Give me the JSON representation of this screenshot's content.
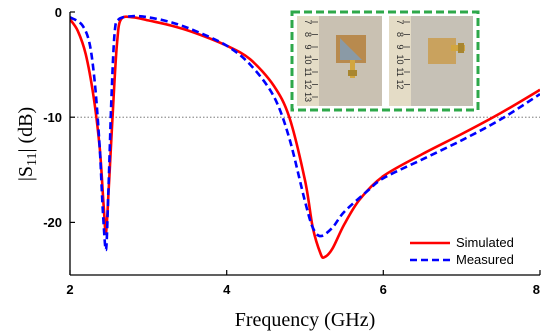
{
  "chart_data": {
    "type": "line",
    "title": "",
    "xlabel": "Frequency (GHz)",
    "ylabel": "|S11| (dB)",
    "ylabel_main": "|S",
    "ylabel_sub": "11",
    "ylabel_end": "| (dB)",
    "xlim": [
      2,
      8
    ],
    "ylim": [
      -25,
      0
    ],
    "x_ticks": [
      2,
      4,
      6,
      8
    ],
    "y_ticks": [
      0,
      -10,
      -20
    ],
    "x_tick_labels": [
      "2",
      "4",
      "6",
      "8"
    ],
    "y_tick_labels": [
      "0",
      "-10",
      "-20"
    ],
    "reference_line": {
      "y": -10,
      "style": "dotted"
    },
    "legend": {
      "placement": "bottom-right"
    },
    "series": [
      {
        "name": "Simulated",
        "color": "#ff0000",
        "style": "solid",
        "points": [
          [
            2.0,
            -0.7
          ],
          [
            2.1,
            -1.8
          ],
          [
            2.2,
            -4.0
          ],
          [
            2.3,
            -8.0
          ],
          [
            2.38,
            -13.0
          ],
          [
            2.43,
            -18.5
          ],
          [
            2.46,
            -21.0
          ],
          [
            2.5,
            -16.0
          ],
          [
            2.55,
            -9.0
          ],
          [
            2.6,
            -3.0
          ],
          [
            2.65,
            -0.7
          ],
          [
            2.8,
            -0.5
          ],
          [
            3.0,
            -0.8
          ],
          [
            3.3,
            -1.3
          ],
          [
            3.6,
            -2.0
          ],
          [
            4.0,
            -3.2
          ],
          [
            4.3,
            -4.5
          ],
          [
            4.6,
            -7.0
          ],
          [
            4.8,
            -10.0
          ],
          [
            5.0,
            -16.0
          ],
          [
            5.1,
            -20.5
          ],
          [
            5.2,
            -23.0
          ],
          [
            5.25,
            -23.3
          ],
          [
            5.35,
            -22.5
          ],
          [
            5.5,
            -20.2
          ],
          [
            5.7,
            -17.8
          ],
          [
            6.0,
            -15.6
          ],
          [
            6.5,
            -13.5
          ],
          [
            7.0,
            -11.6
          ],
          [
            7.5,
            -9.6
          ],
          [
            8.0,
            -7.4
          ]
        ]
      },
      {
        "name": "Measured",
        "color": "#0000ff",
        "style": "dashed",
        "points": [
          [
            2.0,
            -0.5
          ],
          [
            2.15,
            -1.2
          ],
          [
            2.25,
            -3.0
          ],
          [
            2.32,
            -7.0
          ],
          [
            2.38,
            -13.0
          ],
          [
            2.42,
            -19.0
          ],
          [
            2.46,
            -22.6
          ],
          [
            2.49,
            -17.0
          ],
          [
            2.53,
            -8.0
          ],
          [
            2.57,
            -2.0
          ],
          [
            2.62,
            -0.7
          ],
          [
            2.8,
            -0.4
          ],
          [
            3.0,
            -0.5
          ],
          [
            3.3,
            -1.0
          ],
          [
            3.6,
            -1.8
          ],
          [
            4.0,
            -3.2
          ],
          [
            4.3,
            -5.0
          ],
          [
            4.6,
            -8.0
          ],
          [
            4.8,
            -12.0
          ],
          [
            5.0,
            -18.0
          ],
          [
            5.1,
            -20.5
          ],
          [
            5.2,
            -21.3
          ],
          [
            5.35,
            -20.5
          ],
          [
            5.5,
            -19.0
          ],
          [
            5.8,
            -17.0
          ],
          [
            6.0,
            -15.8
          ],
          [
            6.5,
            -14.0
          ],
          [
            7.0,
            -12.2
          ],
          [
            7.5,
            -10.2
          ],
          [
            8.0,
            -7.8
          ]
        ]
      }
    ]
  },
  "inset": {
    "description_icon": "antenna-prototype-photos",
    "frame_color": "#2ea84a",
    "ruler_left_numbers": [
      "7",
      "8",
      "9",
      "10",
      "11",
      "12",
      "13"
    ],
    "ruler_right_numbers": [
      "7",
      "8",
      "9",
      "10",
      "11",
      "12"
    ]
  }
}
